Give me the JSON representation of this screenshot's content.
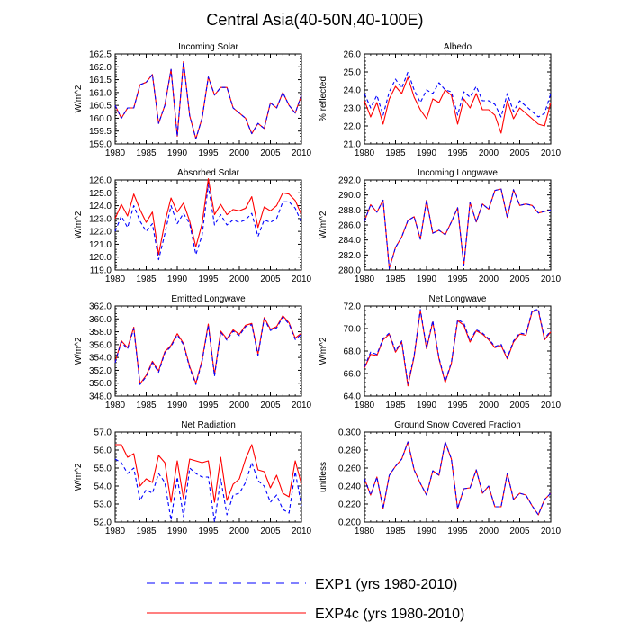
{
  "title": "Central Asia(40-50N,40-100E)",
  "colors": {
    "exp1": "#0000ff",
    "exp4c": "#ff0000",
    "axis": "#000000"
  },
  "legend": [
    {
      "label": "EXP1 (yrs 1980-2010)",
      "color": "#0000ff",
      "style": "dashed"
    },
    {
      "label": "EXP4c (yrs 1980-2010)",
      "color": "#ff0000",
      "style": "solid"
    }
  ],
  "chart_data": [
    {
      "type": "line",
      "title": "Incoming Solar",
      "ylabel": "W/m^2",
      "xlim": [
        1980,
        2010
      ],
      "ylim": [
        159.0,
        162.5
      ],
      "xticks": [
        1980,
        1985,
        1990,
        1995,
        2000,
        2005,
        2010
      ],
      "yticks": [
        "159.0",
        "159.5",
        "160.0",
        "160.5",
        "161.0",
        "161.5",
        "162.0",
        "162.5"
      ],
      "x": [
        1980,
        1981,
        1982,
        1983,
        1984,
        1985,
        1986,
        1987,
        1988,
        1989,
        1990,
        1991,
        1992,
        1993,
        1994,
        1995,
        1996,
        1997,
        1998,
        1999,
        2000,
        2001,
        2002,
        2003,
        2004,
        2005,
        2006,
        2007,
        2008,
        2009,
        2010
      ],
      "series": [
        {
          "name": "EXP1",
          "values": [
            160.5,
            160.0,
            160.4,
            160.4,
            161.3,
            161.4,
            161.7,
            159.8,
            160.5,
            161.9,
            159.3,
            162.2,
            160.1,
            159.2,
            160.0,
            161.6,
            160.9,
            161.2,
            161.2,
            160.4,
            160.2,
            160.0,
            159.4,
            159.8,
            159.6,
            160.6,
            160.4,
            161.0,
            160.5,
            160.2,
            160.9
          ]
        },
        {
          "name": "EXP4c",
          "values": [
            160.5,
            160.0,
            160.4,
            160.4,
            161.3,
            161.4,
            161.7,
            159.8,
            160.5,
            161.9,
            159.3,
            162.2,
            160.1,
            159.2,
            160.0,
            161.6,
            160.9,
            161.2,
            161.2,
            160.4,
            160.2,
            160.0,
            159.4,
            159.8,
            159.6,
            160.6,
            160.4,
            161.0,
            160.5,
            160.2,
            160.9
          ]
        }
      ]
    },
    {
      "type": "line",
      "title": "Albedo",
      "ylabel": "% reflected",
      "xlim": [
        1980,
        2010
      ],
      "ylim": [
        21.0,
        26.0
      ],
      "xticks": [
        1980,
        1985,
        1990,
        1995,
        2000,
        2005,
        2010
      ],
      "yticks": [
        "21.0",
        "22.0",
        "23.0",
        "24.0",
        "25.0",
        "26.0"
      ],
      "x": [
        1980,
        1981,
        1982,
        1983,
        1984,
        1985,
        1986,
        1987,
        1988,
        1989,
        1990,
        1991,
        1992,
        1993,
        1994,
        1995,
        1996,
        1997,
        1998,
        1999,
        2000,
        2001,
        2002,
        2003,
        2004,
        2005,
        2006,
        2007,
        2008,
        2009,
        2010
      ],
      "series": [
        {
          "name": "EXP1",
          "values": [
            23.8,
            23.0,
            23.7,
            22.6,
            23.9,
            24.6,
            24.1,
            25.0,
            24.0,
            23.3,
            24.0,
            23.8,
            24.4,
            24.0,
            23.9,
            22.6,
            23.9,
            23.6,
            24.2,
            23.4,
            23.4,
            23.2,
            22.5,
            23.8,
            22.8,
            23.4,
            23.1,
            22.8,
            22.5,
            22.7,
            23.8
          ]
        },
        {
          "name": "EXP4c",
          "values": [
            23.4,
            22.5,
            23.3,
            22.1,
            23.5,
            24.2,
            23.8,
            24.7,
            23.6,
            22.9,
            22.4,
            23.5,
            23.3,
            24.0,
            23.7,
            22.1,
            23.5,
            23.0,
            23.8,
            22.9,
            22.9,
            22.6,
            21.6,
            23.4,
            22.4,
            23.0,
            22.7,
            22.4,
            22.1,
            22.0,
            23.3
          ]
        }
      ]
    },
    {
      "type": "line",
      "title": "Absorbed Solar",
      "ylabel": "W/m^2",
      "xlim": [
        1980,
        2010
      ],
      "ylim": [
        119.0,
        126.0
      ],
      "xticks": [
        1980,
        1985,
        1990,
        1995,
        2000,
        2005,
        2010
      ],
      "yticks": [
        "119.0",
        "120.0",
        "121.0",
        "122.0",
        "123.0",
        "124.0",
        "125.0",
        "126.0"
      ],
      "x": [
        1980,
        1981,
        1982,
        1983,
        1984,
        1985,
        1986,
        1987,
        1988,
        1989,
        1990,
        1991,
        1992,
        1993,
        1994,
        1995,
        1996,
        1997,
        1998,
        1999,
        2000,
        2001,
        2002,
        2003,
        2004,
        2005,
        2006,
        2007,
        2008,
        2009,
        2010
      ],
      "series": [
        {
          "name": "EXP1",
          "values": [
            122.0,
            123.2,
            122.3,
            124.0,
            122.8,
            122.0,
            122.6,
            119.8,
            121.8,
            124.0,
            122.6,
            123.4,
            122.6,
            120.2,
            121.7,
            125.6,
            122.5,
            123.3,
            122.5,
            122.9,
            122.7,
            122.9,
            123.4,
            121.6,
            122.9,
            122.7,
            123.0,
            124.3,
            124.3,
            123.8,
            122.7
          ]
        },
        {
          "name": "EXP4c",
          "values": [
            123.0,
            124.1,
            123.2,
            124.9,
            123.7,
            122.7,
            123.5,
            120.2,
            122.7,
            124.6,
            123.5,
            124.2,
            122.8,
            120.8,
            122.6,
            126.1,
            123.3,
            124.1,
            123.3,
            123.7,
            123.6,
            123.8,
            124.7,
            122.3,
            123.9,
            123.6,
            124.0,
            125.0,
            124.9,
            124.4,
            123.3
          ]
        }
      ]
    },
    {
      "type": "line",
      "title": "Incoming Longwave",
      "ylabel": "W/m^2",
      "xlim": [
        1980,
        2010
      ],
      "ylim": [
        280.0,
        292.0
      ],
      "xticks": [
        1980,
        1985,
        1990,
        1995,
        2000,
        2005,
        2010
      ],
      "yticks": [
        "280.0",
        "282.0",
        "284.0",
        "286.0",
        "288.0",
        "290.0",
        "292.0"
      ],
      "x": [
        1980,
        1981,
        1982,
        1983,
        1984,
        1985,
        1986,
        1987,
        1988,
        1989,
        1990,
        1991,
        1992,
        1993,
        1994,
        1995,
        1996,
        1997,
        1998,
        1999,
        2000,
        2001,
        2002,
        2003,
        2004,
        2005,
        2006,
        2007,
        2008,
        2009,
        2010
      ],
      "series": [
        {
          "name": "EXP1",
          "values": [
            286.5,
            288.7,
            287.7,
            289.3,
            280.2,
            283.0,
            284.4,
            286.6,
            287.1,
            284.1,
            289.3,
            284.9,
            285.3,
            284.7,
            286.4,
            288.3,
            280.6,
            289.0,
            286.4,
            288.8,
            288.1,
            290.6,
            290.8,
            287.0,
            290.7,
            288.6,
            288.8,
            288.6,
            287.6,
            287.8,
            288.0
          ]
        },
        {
          "name": "EXP4c",
          "values": [
            286.5,
            288.7,
            287.7,
            289.3,
            280.2,
            283.0,
            284.4,
            286.6,
            287.1,
            284.1,
            289.3,
            284.9,
            285.3,
            284.7,
            286.4,
            288.3,
            280.6,
            289.0,
            286.4,
            288.8,
            288.1,
            290.6,
            290.8,
            287.0,
            290.7,
            288.6,
            288.8,
            288.6,
            287.6,
            287.8,
            288.0
          ]
        }
      ]
    },
    {
      "type": "line",
      "title": "Emitted Longwave",
      "ylabel": "W/m^2",
      "xlim": [
        1980,
        2010
      ],
      "ylim": [
        348.0,
        362.0
      ],
      "xticks": [
        1980,
        1985,
        1990,
        1995,
        2000,
        2005,
        2010
      ],
      "yticks": [
        "348.0",
        "350.0",
        "352.0",
        "354.0",
        "356.0",
        "358.0",
        "360.0",
        "362.0"
      ],
      "x": [
        1980,
        1981,
        1982,
        1983,
        1984,
        1985,
        1986,
        1987,
        1988,
        1989,
        1990,
        1991,
        1992,
        1993,
        1994,
        1995,
        1996,
        1997,
        1998,
        1999,
        2000,
        2001,
        2002,
        2003,
        2004,
        2005,
        2006,
        2007,
        2008,
        2009,
        2010
      ],
      "series": [
        {
          "name": "EXP1",
          "values": [
            353.2,
            356.4,
            355.3,
            358.5,
            349.8,
            351.0,
            353.2,
            351.7,
            354.7,
            355.7,
            357.5,
            356.0,
            352.4,
            349.8,
            353.4,
            359.0,
            351.1,
            357.9,
            356.7,
            358.1,
            357.4,
            358.8,
            359.1,
            354.3,
            360.0,
            358.2,
            358.6,
            360.3,
            359.2,
            356.8,
            357.6
          ]
        },
        {
          "name": "EXP4c",
          "values": [
            353.3,
            356.6,
            355.5,
            358.7,
            349.9,
            351.2,
            353.4,
            351.9,
            354.9,
            355.9,
            357.7,
            356.2,
            352.6,
            350.0,
            353.6,
            359.2,
            351.3,
            358.1,
            356.9,
            358.3,
            357.6,
            359.0,
            359.3,
            354.5,
            360.2,
            358.4,
            358.8,
            360.5,
            359.4,
            357.0,
            357.8
          ]
        }
      ]
    },
    {
      "type": "line",
      "title": "Net Longwave",
      "ylabel": "W/m^2",
      "xlim": [
        1980,
        2010
      ],
      "ylim": [
        64.0,
        72.0
      ],
      "xticks": [
        1980,
        1985,
        1990,
        1995,
        2000,
        2005,
        2010
      ],
      "yticks": [
        "64.0",
        "66.0",
        "68.0",
        "70.0",
        "72.0"
      ],
      "x": [
        1980,
        1981,
        1982,
        1983,
        1984,
        1985,
        1986,
        1987,
        1988,
        1989,
        1990,
        1991,
        1992,
        1993,
        1994,
        1995,
        1996,
        1997,
        1998,
        1999,
        2000,
        2001,
        2002,
        2003,
        2004,
        2005,
        2006,
        2007,
        2008,
        2009,
        2010
      ],
      "series": [
        {
          "name": "EXP1",
          "values": [
            66.6,
            67.9,
            67.7,
            69.1,
            69.6,
            68.0,
            68.9,
            65.1,
            67.6,
            71.7,
            68.3,
            70.7,
            67.4,
            65.3,
            67.0,
            70.8,
            70.5,
            68.9,
            69.9,
            69.6,
            69.1,
            68.4,
            68.6,
            67.4,
            68.9,
            69.6,
            69.5,
            71.6,
            71.7,
            69.1,
            69.8
          ]
        },
        {
          "name": "EXP4c",
          "values": [
            66.5,
            67.7,
            67.6,
            69.0,
            69.5,
            67.9,
            68.8,
            64.9,
            67.5,
            71.6,
            68.2,
            70.6,
            67.3,
            65.2,
            66.9,
            70.7,
            70.3,
            68.8,
            69.8,
            69.5,
            69.0,
            68.3,
            68.5,
            67.3,
            68.8,
            69.5,
            69.4,
            71.5,
            71.6,
            69.0,
            69.7
          ]
        }
      ]
    },
    {
      "type": "line",
      "title": "Net Radiation",
      "ylabel": "W/m^2",
      "xlim": [
        1980,
        2010
      ],
      "ylim": [
        52.0,
        57.0
      ],
      "xticks": [
        1980,
        1985,
        1990,
        1995,
        2000,
        2005,
        2010
      ],
      "yticks": [
        "52.0",
        "53.0",
        "54.0",
        "55.0",
        "56.0",
        "57.0"
      ],
      "x": [
        1980,
        1981,
        1982,
        1983,
        1984,
        1985,
        1986,
        1987,
        1988,
        1989,
        1990,
        1991,
        1992,
        1993,
        1994,
        1995,
        1996,
        1997,
        1998,
        1999,
        2000,
        2001,
        2002,
        2003,
        2004,
        2005,
        2006,
        2007,
        2008,
        2009,
        2010
      ],
      "series": [
        {
          "name": "EXP1",
          "values": [
            55.5,
            55.3,
            54.7,
            55.0,
            53.2,
            53.8,
            53.6,
            54.7,
            54.2,
            52.1,
            54.5,
            52.3,
            55.0,
            54.7,
            54.5,
            54.5,
            52.0,
            54.4,
            52.4,
            53.5,
            53.6,
            54.2,
            55.3,
            54.3,
            54.0,
            53.1,
            53.5,
            52.7,
            52.5,
            54.8,
            52.9
          ]
        },
        {
          "name": "EXP4c",
          "values": [
            56.3,
            56.3,
            55.6,
            55.8,
            54.0,
            54.4,
            54.2,
            55.7,
            55.3,
            53.1,
            55.4,
            53.3,
            55.5,
            55.4,
            55.3,
            55.4,
            53.1,
            55.6,
            53.2,
            54.1,
            54.4,
            55.5,
            56.3,
            54.9,
            54.8,
            53.9,
            54.6,
            53.6,
            53.4,
            55.4,
            54.1
          ]
        }
      ]
    },
    {
      "type": "line",
      "title": "Ground Snow Covered Fraction",
      "ylabel": "unitless",
      "xlim": [
        1980,
        2010
      ],
      "ylim": [
        0.2,
        0.3
      ],
      "xticks": [
        1980,
        1985,
        1990,
        1995,
        2000,
        2005,
        2010
      ],
      "yticks": [
        "0.200",
        "0.220",
        "0.240",
        "0.260",
        "0.280",
        "0.300"
      ],
      "x": [
        1980,
        1981,
        1982,
        1983,
        1984,
        1985,
        1986,
        1987,
        1988,
        1989,
        1990,
        1991,
        1992,
        1993,
        1994,
        1995,
        1996,
        1997,
        1998,
        1999,
        2000,
        2001,
        2002,
        2003,
        2004,
        2005,
        2006,
        2007,
        2008,
        2009,
        2010
      ],
      "series": [
        {
          "name": "EXP1",
          "values": [
            0.248,
            0.23,
            0.25,
            0.215,
            0.252,
            0.262,
            0.27,
            0.289,
            0.258,
            0.243,
            0.23,
            0.257,
            0.252,
            0.289,
            0.27,
            0.215,
            0.237,
            0.238,
            0.258,
            0.232,
            0.24,
            0.217,
            0.217,
            0.254,
            0.225,
            0.232,
            0.23,
            0.218,
            0.208,
            0.225,
            0.232
          ]
        },
        {
          "name": "EXP4c",
          "values": [
            0.248,
            0.23,
            0.25,
            0.215,
            0.252,
            0.262,
            0.27,
            0.289,
            0.258,
            0.243,
            0.23,
            0.257,
            0.252,
            0.289,
            0.27,
            0.215,
            0.237,
            0.238,
            0.258,
            0.232,
            0.24,
            0.217,
            0.217,
            0.254,
            0.225,
            0.232,
            0.23,
            0.218,
            0.208,
            0.225,
            0.232
          ]
        }
      ]
    }
  ]
}
